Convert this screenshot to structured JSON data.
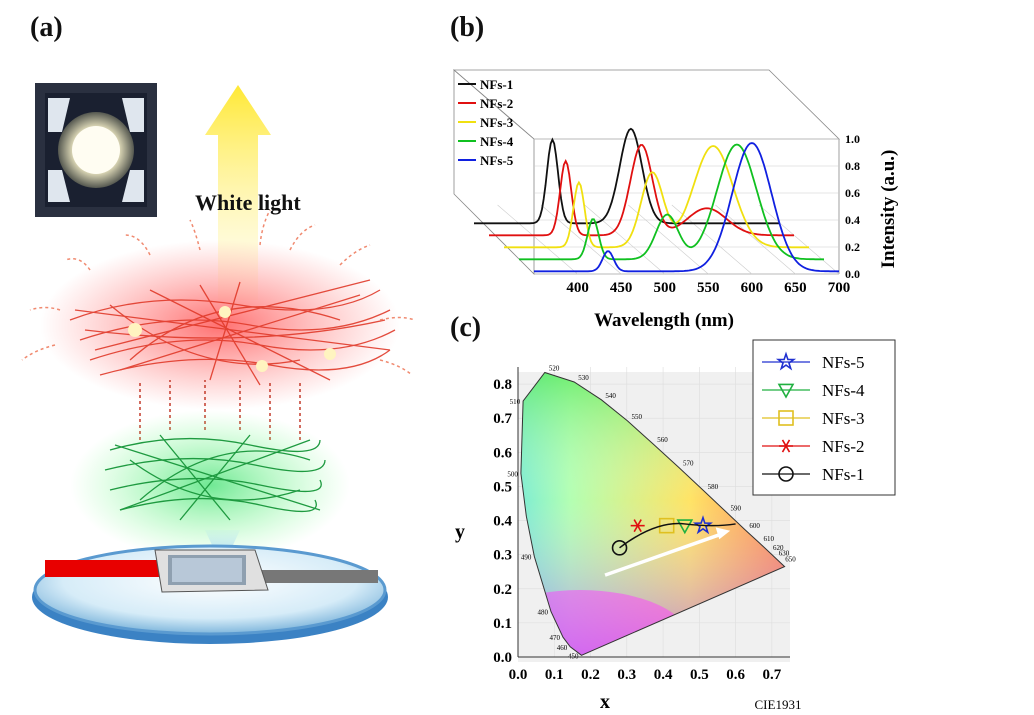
{
  "panels": {
    "a": "(a)",
    "b": "(b)",
    "c": "(c)"
  },
  "panel_a": {
    "caption": "White light"
  },
  "colors": {
    "black": "#111111",
    "red": "#e01010",
    "yellow": "#f0e010",
    "green": "#10c020",
    "blue": "#1020e0"
  },
  "chart_data": [
    {
      "type": "line",
      "panel": "b",
      "xlabel": "Wavelength (nm)",
      "ylabel": "Intensity (a.u.)",
      "xlim": [
        350,
        700
      ],
      "ylim": [
        0.0,
        1.0
      ],
      "x_ticks": [
        "400",
        "450",
        "500",
        "550",
        "600",
        "650",
        "700"
      ],
      "y_ticks": [
        "0.0",
        "0.2",
        "0.4",
        "0.6",
        "0.8",
        "1.0"
      ],
      "legend": [
        "NFs-1",
        "NFs-2",
        "NFs-3",
        "NFs-4",
        "NFs-5"
      ],
      "series": [
        {
          "name": "NFs-1",
          "color": "#111111",
          "peaks": [
            {
              "x": 440,
              "y": 0.62
            },
            {
              "x": 530,
              "y": 0.7
            }
          ]
        },
        {
          "name": "NFs-2",
          "color": "#e01010",
          "peaks": [
            {
              "x": 438,
              "y": 0.55
            },
            {
              "x": 525,
              "y": 0.67
            },
            {
              "x": 600,
              "y": 0.2
            }
          ]
        },
        {
          "name": "NFs-3",
          "color": "#f0e010",
          "peaks": [
            {
              "x": 436,
              "y": 0.48
            },
            {
              "x": 520,
              "y": 0.55
            },
            {
              "x": 590,
              "y": 0.75
            }
          ]
        },
        {
          "name": "NFs-4",
          "color": "#10c020",
          "peaks": [
            {
              "x": 435,
              "y": 0.3
            },
            {
              "x": 520,
              "y": 0.33
            },
            {
              "x": 600,
              "y": 0.85
            }
          ]
        },
        {
          "name": "NFs-5",
          "color": "#1020e0",
          "peaks": [
            {
              "x": 435,
              "y": 0.15
            },
            {
              "x": 600,
              "y": 0.95
            }
          ]
        }
      ]
    },
    {
      "type": "scatter",
      "panel": "c",
      "xlabel": "x",
      "ylabel": "y",
      "xlim": [
        0.0,
        0.75
      ],
      "ylim": [
        0.0,
        0.85
      ],
      "x_ticks": [
        "0.0",
        "0.1",
        "0.2",
        "0.3",
        "0.4",
        "0.5",
        "0.6",
        "0.7"
      ],
      "y_ticks": [
        "0.0",
        "0.1",
        "0.2",
        "0.3",
        "0.4",
        "0.5",
        "0.6",
        "0.7",
        "0.8"
      ],
      "footer": "CIE1931",
      "legend": [
        "NFs-5",
        "NFs-4",
        "NFs-3",
        "NFs-2",
        "NFs-1"
      ],
      "points": [
        {
          "name": "NFs-1",
          "x": 0.28,
          "y": 0.32,
          "marker": "circle",
          "color": "#111111"
        },
        {
          "name": "NFs-2",
          "x": 0.33,
          "y": 0.385,
          "marker": "asterisk",
          "color": "#e01010"
        },
        {
          "name": "NFs-3",
          "x": 0.41,
          "y": 0.385,
          "marker": "square",
          "color": "#e0c020"
        },
        {
          "name": "NFs-4",
          "x": 0.46,
          "y": 0.385,
          "marker": "triangle",
          "color": "#20b040"
        },
        {
          "name": "NFs-5",
          "x": 0.51,
          "y": 0.385,
          "marker": "star",
          "color": "#2030d0"
        }
      ],
      "locus_labels": [
        "520",
        "530",
        "540",
        "550",
        "560",
        "570",
        "580",
        "590",
        "600",
        "610",
        "620",
        "630",
        "650",
        "510",
        "500",
        "490",
        "480",
        "470",
        "460",
        "450"
      ]
    }
  ]
}
